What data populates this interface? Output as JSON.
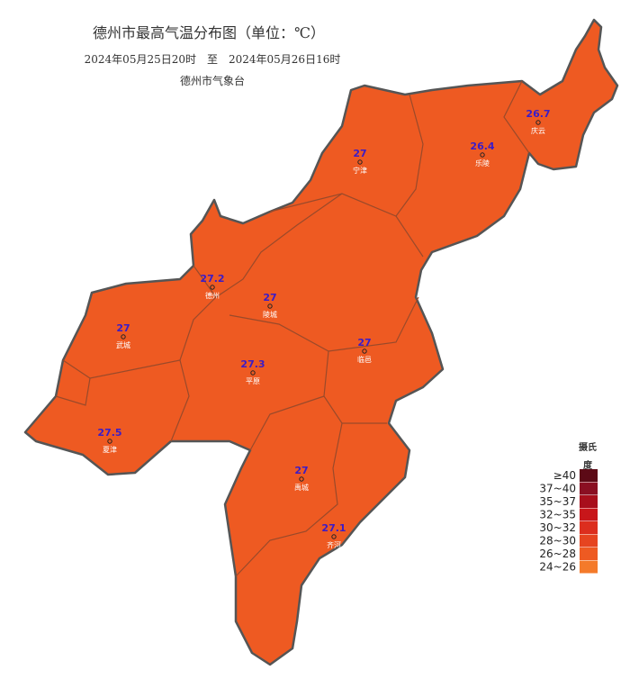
{
  "header": {
    "title": "德州市最高气温分布图（单位：℃）",
    "period": "2024年05月25日20时　至　2024年05月26日16时",
    "agency": "德州市气象台"
  },
  "stations": [
    {
      "name": "庆云",
      "value": 26.7
    },
    {
      "name": "乐陵",
      "value": 26.4
    },
    {
      "name": "宁津",
      "value": 27
    },
    {
      "name": "德州",
      "value": 27.2
    },
    {
      "name": "陵城",
      "value": 27
    },
    {
      "name": "武城",
      "value": 27
    },
    {
      "name": "平原",
      "value": 27.3
    },
    {
      "name": "临邑",
      "value": 27
    },
    {
      "name": "夏津",
      "value": 27.5
    },
    {
      "name": "禹城",
      "value": 27
    },
    {
      "name": "齐河",
      "value": 27.1
    }
  ],
  "legend": {
    "title": "摄氏度",
    "items": [
      {
        "label": "≥40",
        "color": "#5c0a16"
      },
      {
        "label": "37~40",
        "color": "#8a0f22"
      },
      {
        "label": "35~37",
        "color": "#a80f1c"
      },
      {
        "label": "32~35",
        "color": "#c8161a"
      },
      {
        "label": "30~32",
        "color": "#dc2e1e"
      },
      {
        "label": "28~30",
        "color": "#e64420"
      },
      {
        "label": "26~28",
        "color": "#ee5a22"
      },
      {
        "label": "24~26",
        "color": "#f47a2a"
      }
    ]
  }
}
